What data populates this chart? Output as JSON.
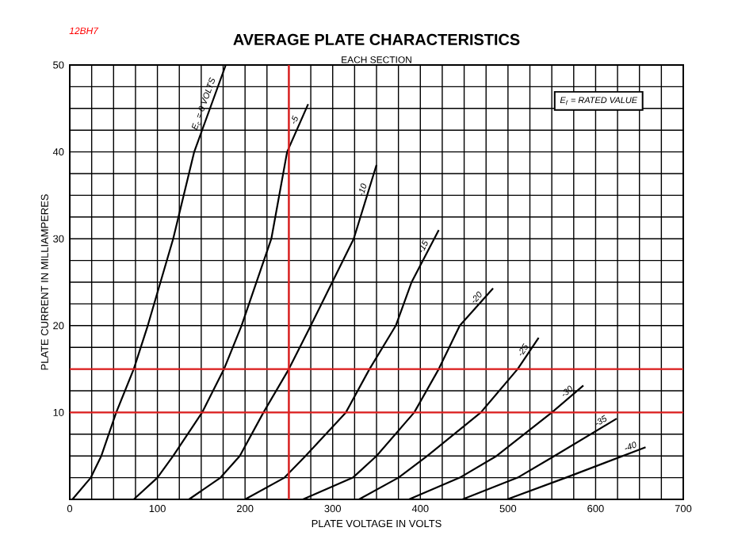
{
  "chart_data": {
    "type": "line",
    "title": "AVERAGE PLATE CHARACTERISTICS",
    "subtitle": "EACH SECTION",
    "xlabel": "PLATE VOLTAGE IN VOLTS",
    "ylabel": "PLATE CURRENT IN MILLIAMPERES",
    "annotations": [
      "12BH7",
      "E$_{f}$ = RATED VALUE"
    ],
    "xlim": [
      0,
      700
    ],
    "ylim": [
      0,
      50
    ],
    "xticks": [
      0,
      100,
      200,
      300,
      400,
      500,
      600,
      700
    ],
    "yticks": [
      {
        "value": 0,
        "label": null
      },
      10,
      20,
      30,
      40,
      50
    ],
    "grid": true,
    "series": [
      {
        "name": "E$_{c}$ = 0 VOLTS",
        "color": "#000000",
        "x": [
          3,
          24,
          36,
          53,
          73,
          89,
          118,
          142,
          178
        ],
        "values": [
          0,
          2.5,
          5,
          10,
          15,
          20,
          30,
          40,
          50
        ]
      },
      {
        "name": "-5",
        "color": "#000000",
        "x": [
          73,
          100,
          118,
          151,
          176,
          196,
          230,
          248,
          272
        ],
        "values": [
          0,
          2.5,
          5,
          10,
          15,
          20,
          30,
          40,
          45.5
        ]
      },
      {
        "name": "-10",
        "color": "#000000",
        "x": [
          136,
          172,
          194,
          221,
          250,
          275,
          324,
          350
        ],
        "values": [
          0,
          2.5,
          5,
          10,
          15,
          20,
          30,
          38.5
        ]
      },
      {
        "name": "-15",
        "color": "#000000",
        "x": [
          200,
          245,
          269,
          315,
          342,
          372,
          390,
          421
        ],
        "values": [
          0,
          2.5,
          5,
          10,
          15,
          20,
          25,
          31
        ]
      },
      {
        "name": "-20",
        "color": "#000000",
        "x": [
          266,
          323,
          350,
          393,
          421,
          445,
          483
        ],
        "values": [
          0,
          2.5,
          5,
          10,
          15,
          20,
          24.3
        ]
      },
      {
        "name": "-25",
        "color": "#000000",
        "x": [
          330,
          375,
          408,
          469,
          511,
          535
        ],
        "values": [
          0,
          2.5,
          5,
          10,
          15,
          18.6
        ]
      },
      {
        "name": "-30",
        "color": "#000000",
        "x": [
          387,
          445,
          487,
          550,
          586
        ],
        "values": [
          0,
          2.5,
          5,
          10,
          13.1
        ]
      },
      {
        "name": "-35",
        "color": "#000000",
        "x": [
          448,
          511,
          553,
          624
        ],
        "values": [
          0,
          2.5,
          5,
          9.3
        ]
      },
      {
        "name": "-40",
        "color": "#000000",
        "x": [
          499,
          566,
          657
        ],
        "values": [
          0,
          2.5,
          6
        ]
      }
    ],
    "ref_lines": [
      {
        "axis": "y",
        "value": 15,
        "color": "#e02020"
      },
      {
        "axis": "y",
        "value": 10,
        "color": "#e02020"
      },
      {
        "axis": "x",
        "value": 250,
        "color": "#e02020"
      }
    ]
  }
}
